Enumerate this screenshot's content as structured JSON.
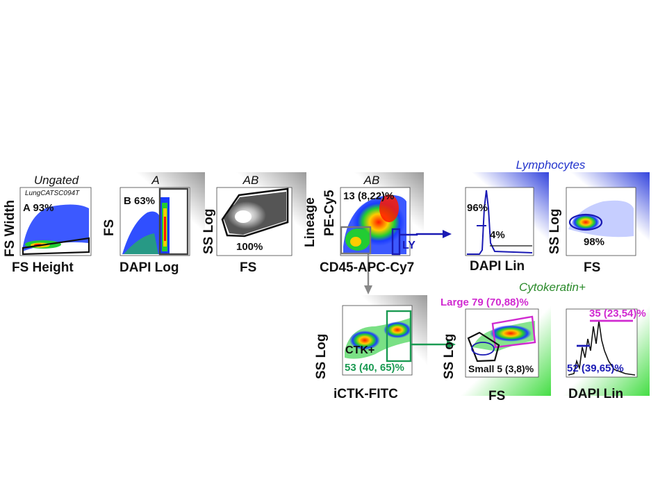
{
  "titles": {
    "ungated": "Ungated",
    "a": "A",
    "ab1": "AB",
    "ab2": "AB",
    "lymphocytes": "Lymphocytes",
    "cytokeratin": "Cytokeratin+"
  },
  "sample_id": "LungCATSC094T",
  "panels": {
    "p1": {
      "xlabel": "FS Height",
      "ylabel": "FS Width",
      "gate": "A 93%"
    },
    "p2": {
      "xlabel": "DAPI Log",
      "ylabel": "FS",
      "gate": "B 63%"
    },
    "p3": {
      "xlabel": "FS",
      "ylabel": "SS Log",
      "gate": "100%"
    },
    "p4": {
      "xlabel": "CD45-APC-Cy7",
      "ylabel1": "Lineage",
      "ylabel2": "PE-Cy5",
      "gate": "13 (8,22)%",
      "gate2": "LY"
    },
    "p5": {
      "xlabel": "DAPI Lin",
      "gate_hi": "96%",
      "gate_lo": "4%"
    },
    "p6": {
      "xlabel": "FS",
      "ylabel": "SS Log",
      "gate": "98%"
    },
    "p7": {
      "xlabel": "iCTK-FITC",
      "ylabel": "SS Log",
      "gate_name": "CTK+",
      "gate": "53 (40, 65)%"
    },
    "p8": {
      "xlabel": "FS",
      "ylabel": "SS Log",
      "gate_large": "Large 79 (70,88)%",
      "gate_small": "Small 5 (3,8)%"
    },
    "p9": {
      "xlabel": "DAPI Lin",
      "gate_hi": "35 (23,54)%",
      "gate_lo": "52 (39,65)%"
    }
  },
  "colors": {
    "gate_black": "#111111",
    "gate_blue": "#1a1ab4",
    "gate_green": "#1a9a52",
    "gate_magenta": "#d02ad0",
    "title_blue": "#2233cc",
    "title_green": "#2a8a2a"
  }
}
